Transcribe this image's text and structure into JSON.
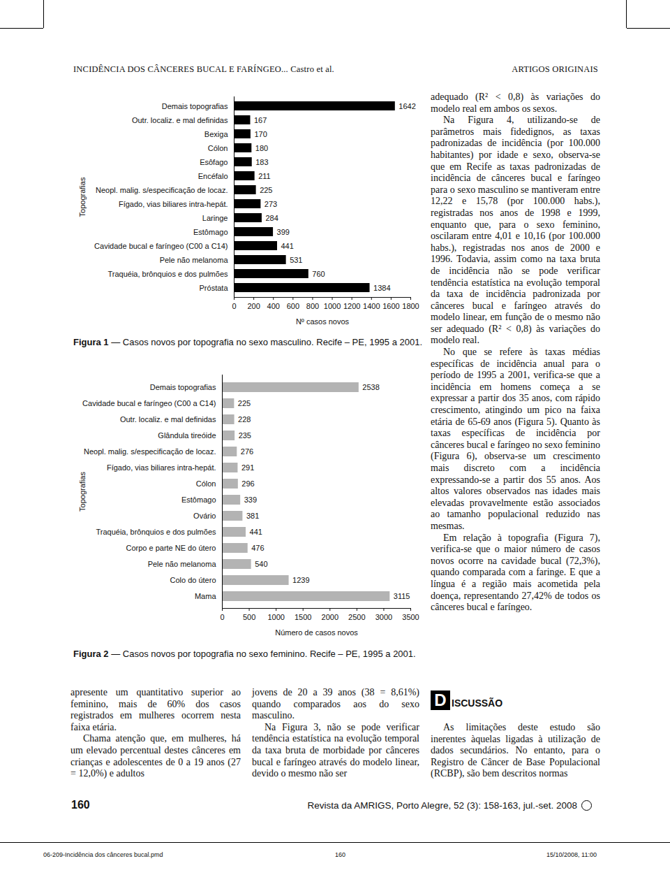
{
  "header": {
    "left": "INCIDÊNCIA DOS CÂNCERES BUCAL E FARÍNGEO... Castro et al.",
    "right": "ARTIGOS ORIGINAIS"
  },
  "chart_data": [
    {
      "type": "bar",
      "orientation": "horizontal",
      "data_labels": true,
      "grid": false,
      "color": "#000000",
      "y_label": "Topografias",
      "x_label": "Nº casos novos",
      "caption": "Figura 1 — Casos novos por topografia no sexo masculino. Recife – PE, 1995 a 2001.",
      "categories": [
        "Demais topografias",
        "Outr. localiz. e mal definidas",
        "Bexiga",
        "Cólon",
        "Esôfago",
        "Encéfalo",
        "Neopl. malig. s/especificação de locaz.",
        "Fígado, vias biliares intra-hepát.",
        "Laringe",
        "Estômago",
        "Cavidade bucal e faríngeo (C00 a C14)",
        "Pele não melanoma",
        "Traquéia, brônquios e dos pulmões",
        "Próstata"
      ],
      "values": [
        1642,
        167,
        170,
        180,
        183,
        211,
        225,
        273,
        284,
        399,
        441,
        531,
        760,
        1384
      ],
      "xlim": [
        0,
        1800
      ],
      "xticks": [
        0,
        200,
        400,
        600,
        800,
        1000,
        1200,
        1400,
        1600,
        1800
      ]
    },
    {
      "type": "bar",
      "orientation": "horizontal",
      "data_labels": true,
      "grid": false,
      "color": "#b3b3b3",
      "y_label": "Topografias",
      "x_label": "Número de casos novos",
      "caption": "Figura 2 — Casos novos por topografia no sexo feminino. Recife – PE, 1995 a 2001.",
      "categories": [
        "Demais topografias",
        "Cavidade bucal e faríngeo (C00 a C14)",
        "Outr. localiz. e mal definidas",
        "Glândula tireóide",
        "Neopl. malig. s/especificação de locaz.",
        "Fígado, vias biliares intra-hepát.",
        "Cólon",
        "Estômago",
        "Ovário",
        "Traquéia, brônquios e dos pulmões",
        "Corpo e parte NE do útero",
        "Pele não melanoma",
        "Colo do útero",
        "Mama"
      ],
      "values": [
        2538,
        225,
        228,
        235,
        276,
        291,
        296,
        339,
        381,
        441,
        476,
        540,
        1239,
        3115
      ],
      "xlim": [
        0,
        3500
      ],
      "xticks": [
        0,
        500,
        1000,
        1500,
        2000,
        2500,
        3000,
        3500
      ]
    }
  ],
  "right_column": [
    "adequado (R² < 0,8) às variações do modelo real em ambos os sexos.",
    "Na Figura 4, utilizando-se de parâmetros mais fidedignos, as taxas padronizadas de incidência (por 100.000 habitantes) por idade e sexo, observa-se que em Recife as taxas padronizadas de incidência de cânceres bucal e faríngeo para o sexo masculino se mantiveram entre 12,22 e 15,78 (por 100.000 habs.), registradas nos anos de 1998 e 1999, enquanto que, para o sexo feminino, oscilaram entre 4,01 e 10,16 (por 100.000 habs.), registradas nos anos de 2000 e 1996. Todavia, assim como na taxa bruta de incidência não se pode verificar tendência estatística na evolução temporal da taxa de incidência padronizada por cânceres bucal e faríngeo através do modelo linear, em função de o mesmo não ser adequado (R² < 0,8) às variações do modelo real.",
    "No que se refere às taxas médias específicas de incidência anual para o período de 1995 a 2001, verifica-se que a incidência em homens começa a se expressar a partir dos 35 anos, com rápido crescimento, atingindo um pico na faixa etária de 65-69 anos (Figura 5). Quanto às taxas específicas de incidência por cânceres bucal e faríngeo no sexo feminino (Figura 6), observa-se um crescimento mais discreto com a incidência expressando-se a partir dos 55 anos. Aos altos valores observados nas idades mais elevadas provavelmente estão associados ao tamanho populacional reduzido nas mesmas.",
    "Em relação à topografia (Figura 7), verifica-se que o maior número de casos novos ocorre na cavidade bucal (72,3%), quando comparada com a faringe. E que a língua é a região mais acometida pela doença, representando 27,42% de todos os cânceres bucal e faríngeo."
  ],
  "discussion": {
    "heading": "DISCUSSÃO",
    "paragraphs": [
      "As limitações deste estudo são inerentes àquelas ligadas à utilização de dados secundários. No entanto, para o Registro de Câncer de Base Populacional (RCBP), são bem descritos normas"
    ]
  },
  "bottom_left": [
    "apresente um quantitativo superior ao feminino, mais de 60% dos casos registrados em mulheres ocorrem nesta faixa etária.",
    "Chama atenção que, em mulheres, há um elevado percentual destes cânceres em crianças e adolescentes de 0 a 19 anos (27 = 12,0%) e adultos"
  ],
  "bottom_middle": [
    "jovens de 20 a 39 anos (38 = 8,61%) quando comparados aos do sexo masculino.",
    "Na Figura 3, não se pode verificar tendência estatística na evolução temporal da taxa bruta de morbidade por cânceres bucal e faríngeo através do modelo linear, devido o mesmo não ser"
  ],
  "footer": {
    "page": "160",
    "journal": "Revista da AMRIGS, Porto Alegre, 52 (3): 158-163, jul.-set. 2008"
  },
  "slug": {
    "file": "06-209-Incidência dos cânceres bucal.pmd",
    "page": "160",
    "date": "15/10/2008, 11:00"
  }
}
